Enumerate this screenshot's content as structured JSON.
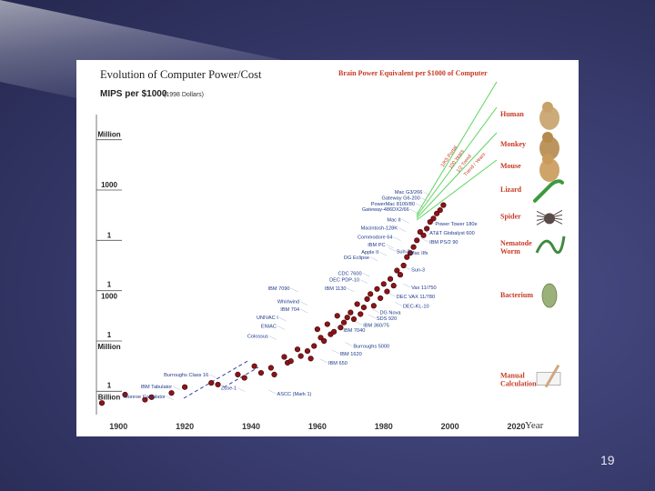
{
  "slide": {
    "number": "19"
  },
  "chart_data": {
    "type": "scatter",
    "title": "Evolution of Computer Power/Cost",
    "ylabel": "MIPS per $1000",
    "ylabel_note": "(1998 Dollars)",
    "right_title": "Brain Power Equivalent per $1000 of Computer",
    "xlabel": "Year",
    "x_ticks": [
      1900,
      1920,
      1940,
      1960,
      1980,
      2000,
      2020
    ],
    "y_ticks": [
      {
        "label": "Million",
        "log10": 6
      },
      {
        "label": "1000",
        "log10": 3
      },
      {
        "label": "1",
        "log10": 0
      },
      {
        "label": "1/1000",
        "log10": -3
      },
      {
        "label": "1/Million",
        "log10": -6
      },
      {
        "label": "1/Billion",
        "log10": -9
      }
    ],
    "xlim": [
      1895,
      2030
    ],
    "ylim_log10": [
      -10.5,
      7.5
    ],
    "trend_labels": [
      "1/K5 Portal",
      "100 Years",
      "1/2 Trend",
      "Trend / Years"
    ],
    "animals": [
      {
        "name": "Human",
        "log10": 7.4
      },
      {
        "name": "Monkey",
        "log10": 5.6
      },
      {
        "name": "Mouse",
        "log10": 4.3
      },
      {
        "name": "Lizard",
        "log10": 2.9
      },
      {
        "name": "Spider",
        "log10": 1.3
      },
      {
        "name": "Nematode Worm",
        "log10": -0.3
      },
      {
        "name": "Bacterium",
        "log10": -3.4
      },
      {
        "name": "Manual Calculation",
        "log10": -8.2
      }
    ],
    "points": [
      [
        1895,
        -9.7
      ],
      [
        1902,
        -9.2
      ],
      [
        1908,
        -9.5
      ],
      [
        1910,
        -9.35
      ],
      [
        1916,
        -9.1
      ],
      [
        1920,
        -8.75
      ],
      [
        1928,
        -8.5
      ],
      [
        1930,
        -8.6
      ],
      [
        1936,
        -8.0
      ],
      [
        1938,
        -8.2
      ],
      [
        1941,
        -7.5
      ],
      [
        1943,
        -7.9
      ],
      [
        1946,
        -7.6
      ],
      [
        1947,
        -8.0
      ],
      [
        1950,
        -6.95
      ],
      [
        1951,
        -7.3
      ],
      [
        1952,
        -7.2
      ],
      [
        1954,
        -6.5
      ],
      [
        1955,
        -6.9
      ],
      [
        1957,
        -6.6
      ],
      [
        1958,
        -7.05
      ],
      [
        1959,
        -6.3
      ],
      [
        1960,
        -5.3
      ],
      [
        1961,
        -5.8
      ],
      [
        1962,
        -6.0
      ],
      [
        1963,
        -5.0
      ],
      [
        1964,
        -5.6
      ],
      [
        1965,
        -5.45
      ],
      [
        1966,
        -4.5
      ],
      [
        1967,
        -5.2
      ],
      [
        1968,
        -4.9
      ],
      [
        1969,
        -4.6
      ],
      [
        1970,
        -4.3
      ],
      [
        1971,
        -4.7
      ],
      [
        1972,
        -3.8
      ],
      [
        1973,
        -4.4
      ],
      [
        1974,
        -4.0
      ],
      [
        1975,
        -3.5
      ],
      [
        1976,
        -3.2
      ],
      [
        1977,
        -3.9
      ],
      [
        1978,
        -2.9
      ],
      [
        1979,
        -3.45
      ],
      [
        1980,
        -2.6
      ],
      [
        1981,
        -3.05
      ],
      [
        1982,
        -2.3
      ],
      [
        1983,
        -2.7
      ],
      [
        1984,
        -1.8
      ],
      [
        1985,
        -2.05
      ],
      [
        1986,
        -1.5
      ],
      [
        1987,
        -1.0
      ],
      [
        1988,
        -0.75
      ],
      [
        1989,
        -0.4
      ],
      [
        1990,
        0.0
      ],
      [
        1991,
        0.5
      ],
      [
        1992,
        0.3
      ],
      [
        1993,
        0.7
      ],
      [
        1994,
        1.1
      ],
      [
        1995,
        1.3
      ],
      [
        1996,
        1.6
      ],
      [
        1997,
        1.8
      ],
      [
        1998,
        2.1
      ]
    ],
    "labels_left": [
      {
        "text": "Mac G3/266",
        "year": 1992.5,
        "log10": 2.9
      },
      {
        "text": "Gateway G6-200",
        "year": 1991.8,
        "log10": 2.55
      },
      {
        "text": "PowerMac 8100/80",
        "year": 1990.2,
        "log10": 2.2
      },
      {
        "text": "Gateway-486DX2/66",
        "year": 1988.5,
        "log10": 1.85
      },
      {
        "text": "Mac II",
        "year": 1986,
        "log10": 1.25
      },
      {
        "text": "Macintosh-128K",
        "year": 1985,
        "log10": 0.75
      },
      {
        "text": "Commodore 64",
        "year": 1983.5,
        "log10": 0.2
      },
      {
        "text": "IBM PC",
        "year": 1981.3,
        "log10": -0.25
      },
      {
        "text": "Apple II",
        "year": 1979.3,
        "log10": -0.7
      },
      {
        "text": "DG Eclipse",
        "year": 1976.5,
        "log10": -1.0
      },
      {
        "text": "CDC 7600",
        "year": 1974.2,
        "log10": -1.95
      },
      {
        "text": "DEC PDP-10",
        "year": 1973.5,
        "log10": -2.35
      },
      {
        "text": "IBM 7090",
        "year": 1952.5,
        "log10": -2.85
      },
      {
        "text": "IBM 1130",
        "year": 1969.5,
        "log10": -2.85
      },
      {
        "text": "Whirlwind",
        "year": 1955.4,
        "log10": -3.65
      },
      {
        "text": "IBM 704",
        "year": 1955.4,
        "log10": -4.1
      },
      {
        "text": "UNIVAC I",
        "year": 1949,
        "log10": -4.6
      },
      {
        "text": "ENIAC",
        "year": 1948.5,
        "log10": -5.1
      },
      {
        "text": "Colossus",
        "year": 1946,
        "log10": -5.7
      },
      {
        "text": "Burroughs Class 16",
        "year": 1928,
        "log10": -8.0
      },
      {
        "text": "IBM Tabulator",
        "year": 1917,
        "log10": -8.7
      },
      {
        "text": "Monroe Calculator",
        "year": 1915,
        "log10": -9.3
      },
      {
        "text": "Zuse-1",
        "year": 1936.5,
        "log10": -8.8
      }
    ],
    "labels_right": [
      {
        "text": "Power Tower 180e",
        "year": 1994.7,
        "log10": 1.0
      },
      {
        "text": "AT&T Globalyst 600",
        "year": 1993,
        "log10": 0.45
      },
      {
        "text": "IBM PS/2 90",
        "year": 1993,
        "log10": -0.1
      },
      {
        "text": "Sun-2",
        "year": 1983,
        "log10": -0.65
      },
      {
        "text": "Mac IIfx",
        "year": 1987.2,
        "log10": -0.75
      },
      {
        "text": "Sun-3",
        "year": 1987.5,
        "log10": -1.75
      },
      {
        "text": "Vax 11/750",
        "year": 1987.5,
        "log10": -2.8
      },
      {
        "text": "DEC VAX 11/780",
        "year": 1983,
        "log10": -3.35
      },
      {
        "text": "DEC-KL-10",
        "year": 1985,
        "log10": -3.9
      },
      {
        "text": "DG Nova",
        "year": 1978,
        "log10": -4.3
      },
      {
        "text": "SDS 920",
        "year": 1977,
        "log10": -4.65
      },
      {
        "text": "IBM 360/75",
        "year": 1973,
        "log10": -5.05
      },
      {
        "text": "IBM 7040",
        "year": 1967,
        "log10": -5.35
      },
      {
        "text": "Burroughs 5000",
        "year": 1970,
        "log10": -6.3
      },
      {
        "text": "IBM 1620",
        "year": 1966,
        "log10": -6.75
      },
      {
        "text": "IBM 650",
        "year": 1962.5,
        "log10": -7.3
      },
      {
        "text": "ASCC (Mark 1)",
        "year": 1947,
        "log10": -9.15
      }
    ]
  }
}
